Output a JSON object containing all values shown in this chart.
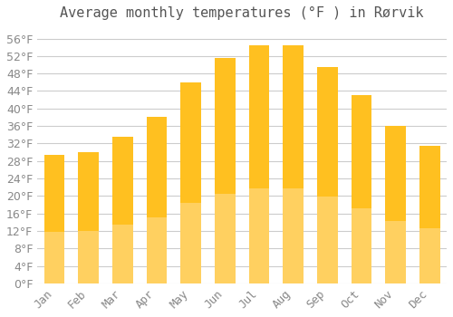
{
  "title": "Average monthly temperatures (°F ) in Rørvik",
  "months": [
    "Jan",
    "Feb",
    "Mar",
    "Apr",
    "May",
    "Jun",
    "Jul",
    "Aug",
    "Sep",
    "Oct",
    "Nov",
    "Dec"
  ],
  "values": [
    29.5,
    30.0,
    33.5,
    38.0,
    46.0,
    51.5,
    54.5,
    54.5,
    49.5,
    43.0,
    36.0,
    31.5
  ],
  "bar_color_top": "#FFC020",
  "bar_color_bottom": "#FFD060",
  "background_color": "#FFFFFF",
  "grid_color": "#CCCCCC",
  "ylim": [
    0,
    58
  ],
  "yticks": [
    0,
    4,
    8,
    12,
    16,
    20,
    24,
    28,
    32,
    36,
    40,
    44,
    48,
    52,
    56
  ],
  "title_fontsize": 11,
  "tick_fontsize": 9,
  "title_color": "#555555",
  "tick_color": "#888888"
}
